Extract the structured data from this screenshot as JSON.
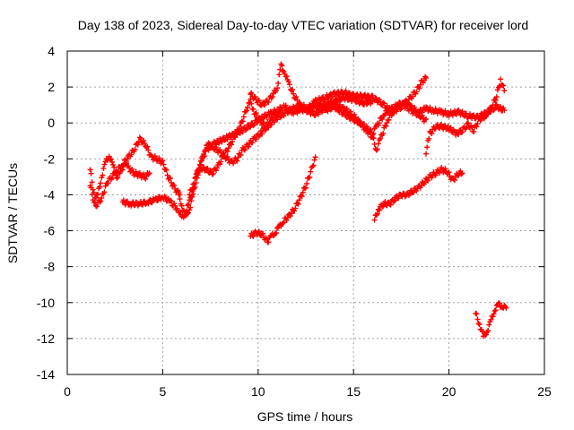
{
  "chart_data": {
    "type": "scatter",
    "title": "Day 138 of 2023, Sidereal Day-to-day VTEC variation (SDTVAR) for receiver lord",
    "xlabel": "GPS time / hours",
    "ylabel": "SDTVAR / TECUs",
    "xlim": [
      0,
      25
    ],
    "ylim": [
      -14,
      4
    ],
    "x_ticks": [
      0,
      5,
      10,
      15,
      20,
      25
    ],
    "y_ticks": [
      -14,
      -12,
      -10,
      -8,
      -6,
      -4,
      -2,
      0,
      2,
      4
    ],
    "x_tick_labels": [
      "0",
      "5",
      "10",
      "15",
      "20",
      "25"
    ],
    "y_tick_labels": [
      "-14",
      "-12",
      "-10",
      "-8",
      "-6",
      "-4",
      "-2",
      "0",
      "2",
      "4"
    ],
    "grid": true,
    "marker": "plus",
    "color": "#ff0000",
    "series": [
      {
        "points": [
          [
            1.2,
            -3.5
          ],
          [
            1.4,
            -4.4
          ],
          [
            1.6,
            -4.0
          ],
          [
            1.8,
            -3.0
          ],
          [
            2.0,
            -2.2
          ],
          [
            2.2,
            -1.8
          ],
          [
            2.4,
            -2.4
          ],
          [
            2.6,
            -3.0
          ],
          [
            2.8,
            -2.8
          ],
          [
            3.0,
            -2.2
          ],
          [
            3.2,
            -2.5
          ],
          [
            3.5,
            -2.8
          ],
          [
            3.8,
            -2.9
          ],
          [
            4.1,
            -3.0
          ],
          [
            4.3,
            -2.8
          ]
        ]
      },
      {
        "points": [
          [
            1.2,
            -2.6
          ],
          [
            1.5,
            -4.6
          ],
          [
            1.8,
            -4.2
          ],
          [
            2.1,
            -3.3
          ],
          [
            2.5,
            -2.8
          ],
          [
            2.9,
            -2.3
          ],
          [
            3.2,
            -1.9
          ],
          [
            3.5,
            -1.5
          ],
          [
            3.8,
            -0.9
          ],
          [
            4.1,
            -1.2
          ],
          [
            4.4,
            -1.9
          ],
          [
            4.7,
            -2.0
          ],
          [
            5.0,
            -2.2
          ],
          [
            5.3,
            -3.0
          ],
          [
            5.6,
            -3.6
          ],
          [
            5.9,
            -4.0
          ]
        ]
      },
      {
        "points": [
          [
            2.9,
            -4.4
          ],
          [
            3.3,
            -4.5
          ],
          [
            3.8,
            -4.5
          ],
          [
            4.2,
            -4.4
          ],
          [
            4.6,
            -4.3
          ],
          [
            5.0,
            -4.1
          ],
          [
            5.4,
            -4.4
          ],
          [
            5.8,
            -4.8
          ],
          [
            6.0,
            -5.3
          ],
          [
            6.2,
            -5.0
          ],
          [
            6.4,
            -4.4
          ],
          [
            6.6,
            -3.6
          ],
          [
            6.8,
            -2.8
          ],
          [
            7.0,
            -2.2
          ],
          [
            7.3,
            -1.5
          ],
          [
            7.6,
            -1.2
          ],
          [
            8.0,
            -1.0
          ],
          [
            8.4,
            -0.8
          ],
          [
            8.8,
            -0.6
          ],
          [
            9.2,
            -0.4
          ],
          [
            9.5,
            -0.2
          ],
          [
            9.8,
            0.0
          ],
          [
            10.2,
            0.3
          ],
          [
            10.6,
            0.5
          ],
          [
            11.0,
            0.7
          ],
          [
            11.4,
            0.9
          ],
          [
            11.8,
            0.6
          ],
          [
            12.2,
            0.7
          ],
          [
            12.6,
            0.8
          ],
          [
            13.0,
            0.9
          ],
          [
            13.5,
            1.0
          ],
          [
            14.0,
            1.2
          ],
          [
            14.5,
            1.4
          ],
          [
            15.0,
            1.3
          ],
          [
            15.5,
            1.1
          ],
          [
            16.0,
            1.2
          ]
        ]
      },
      {
        "points": [
          [
            5.8,
            -3.8
          ],
          [
            6.0,
            -4.6
          ],
          [
            6.2,
            -5.2
          ],
          [
            6.4,
            -4.8
          ],
          [
            6.6,
            -4.0
          ],
          [
            6.8,
            -3.0
          ],
          [
            7.0,
            -2.2
          ],
          [
            7.2,
            -1.5
          ],
          [
            7.4,
            -1.2
          ],
          [
            7.7,
            -1.4
          ],
          [
            8.0,
            -1.6
          ],
          [
            8.3,
            -1.9
          ],
          [
            8.6,
            -2.2
          ],
          [
            8.9,
            -2.0
          ],
          [
            9.2,
            -1.5
          ],
          [
            9.5,
            -1.2
          ],
          [
            9.8,
            -0.9
          ],
          [
            10.2,
            -0.5
          ],
          [
            10.6,
            -0.1
          ],
          [
            11.0,
            0.3
          ],
          [
            11.5,
            0.6
          ],
          [
            12.0,
            0.9
          ],
          [
            12.5,
            0.7
          ],
          [
            13.0,
            0.5
          ],
          [
            13.5,
            0.8
          ],
          [
            14.0,
            1.0
          ],
          [
            14.5,
            0.8
          ],
          [
            15.0,
            0.4
          ],
          [
            15.5,
            -0.2
          ],
          [
            16.0,
            -0.8
          ],
          [
            16.2,
            -1.5
          ],
          [
            16.4,
            -0.9
          ],
          [
            16.8,
            0.2
          ],
          [
            17.2,
            0.8
          ],
          [
            17.6,
            1.2
          ],
          [
            18.0,
            0.9
          ],
          [
            18.4,
            0.6
          ],
          [
            18.8,
            0.8
          ],
          [
            19.2,
            0.7
          ],
          [
            19.6,
            0.6
          ],
          [
            20.0,
            0.5
          ],
          [
            20.5,
            0.6
          ],
          [
            21.0,
            0.4
          ],
          [
            21.5,
            0.3
          ],
          [
            22.0,
            0.6
          ],
          [
            22.5,
            0.9
          ],
          [
            22.9,
            0.7
          ]
        ]
      },
      {
        "points": [
          [
            6.4,
            -4.0
          ],
          [
            6.6,
            -3.4
          ],
          [
            6.8,
            -2.8
          ],
          [
            7.0,
            -2.5
          ],
          [
            7.3,
            -2.6
          ],
          [
            7.6,
            -2.8
          ],
          [
            7.9,
            -2.4
          ],
          [
            8.2,
            -1.8
          ],
          [
            8.5,
            -1.3
          ],
          [
            8.8,
            -0.7
          ],
          [
            9.1,
            -0.1
          ],
          [
            9.4,
            0.8
          ],
          [
            9.6,
            1.2
          ],
          [
            9.8,
            0.6
          ],
          [
            10.1,
            0.1
          ],
          [
            10.4,
            -0.2
          ],
          [
            10.7,
            0.2
          ],
          [
            11.0,
            0.5
          ],
          [
            11.2,
            0.8
          ]
        ]
      },
      {
        "points": [
          [
            9.6,
            1.6
          ],
          [
            9.9,
            1.3
          ],
          [
            10.2,
            1.0
          ],
          [
            10.5,
            1.2
          ],
          [
            10.8,
            1.6
          ],
          [
            11.0,
            2.0
          ],
          [
            11.2,
            3.2
          ],
          [
            11.4,
            2.8
          ],
          [
            11.6,
            2.2
          ],
          [
            11.9,
            1.5
          ],
          [
            12.2,
            1.0
          ],
          [
            12.6,
            0.8
          ],
          [
            13.0,
            1.2
          ],
          [
            13.5,
            1.4
          ],
          [
            14.0,
            1.6
          ],
          [
            14.5,
            1.7
          ],
          [
            15.0,
            1.5
          ],
          [
            15.5,
            1.5
          ],
          [
            16.0,
            1.4
          ],
          [
            16.5,
            1.1
          ],
          [
            17.0,
            0.6
          ],
          [
            17.5,
            0.9
          ],
          [
            18.0,
            1.4
          ],
          [
            18.3,
            1.8
          ],
          [
            18.6,
            2.3
          ],
          [
            18.8,
            2.5
          ]
        ]
      },
      {
        "points": [
          [
            13.5,
            0.7
          ],
          [
            14.0,
            0.9
          ],
          [
            14.5,
            0.5
          ],
          [
            15.0,
            0.2
          ],
          [
            15.5,
            -0.1
          ],
          [
            16.0,
            -0.6
          ],
          [
            16.2,
            -0.2
          ],
          [
            16.6,
            0.5
          ],
          [
            17.0,
            0.8
          ],
          [
            17.5,
            1.1
          ],
          [
            18.0,
            0.7
          ],
          [
            18.5,
            0.4
          ],
          [
            18.8,
            0.1
          ],
          [
            18.8,
            -1.6
          ],
          [
            19.0,
            -0.6
          ],
          [
            19.3,
            -0.2
          ],
          [
            19.6,
            -0.2
          ],
          [
            20.0,
            -0.3
          ],
          [
            20.4,
            -0.6
          ],
          [
            20.7,
            -0.4
          ],
          [
            21.0,
            -0.1
          ],
          [
            21.3,
            -0.4
          ],
          [
            21.6,
            0.2
          ],
          [
            21.9,
            0.4
          ],
          [
            22.2,
            0.8
          ],
          [
            22.5,
            1.5
          ],
          [
            22.7,
            2.4
          ],
          [
            22.9,
            1.8
          ]
        ]
      },
      {
        "points": [
          [
            9.6,
            -6.3
          ],
          [
            9.9,
            -6.1
          ],
          [
            10.2,
            -6.2
          ],
          [
            10.5,
            -6.6
          ],
          [
            10.7,
            -6.3
          ],
          [
            10.9,
            -6.1
          ],
          [
            11.1,
            -5.8
          ],
          [
            11.3,
            -5.5
          ],
          [
            11.6,
            -5.2
          ],
          [
            11.9,
            -4.8
          ],
          [
            12.2,
            -4.2
          ],
          [
            12.5,
            -3.5
          ],
          [
            12.8,
            -2.6
          ],
          [
            13.0,
            -1.9
          ]
        ]
      },
      {
        "points": [
          [
            16.1,
            -5.4
          ],
          [
            16.3,
            -4.8
          ],
          [
            16.6,
            -4.5
          ],
          [
            16.9,
            -4.5
          ],
          [
            17.2,
            -4.2
          ],
          [
            17.5,
            -4.0
          ],
          [
            17.8,
            -4.0
          ],
          [
            18.1,
            -3.8
          ],
          [
            18.4,
            -3.6
          ],
          [
            18.7,
            -3.3
          ],
          [
            19.0,
            -3.0
          ],
          [
            19.3,
            -2.8
          ],
          [
            19.6,
            -2.6
          ],
          [
            19.9,
            -2.7
          ],
          [
            20.2,
            -3.2
          ],
          [
            20.5,
            -2.8
          ],
          [
            20.7,
            -2.8
          ]
        ]
      },
      {
        "points": [
          [
            21.4,
            -10.6
          ],
          [
            21.6,
            -11.2
          ],
          [
            21.8,
            -11.9
          ],
          [
            22.0,
            -11.6
          ],
          [
            22.2,
            -11.0
          ],
          [
            22.4,
            -10.4
          ],
          [
            22.6,
            -10.1
          ],
          [
            22.8,
            -10.2
          ],
          [
            23.0,
            -10.3
          ]
        ]
      }
    ]
  }
}
